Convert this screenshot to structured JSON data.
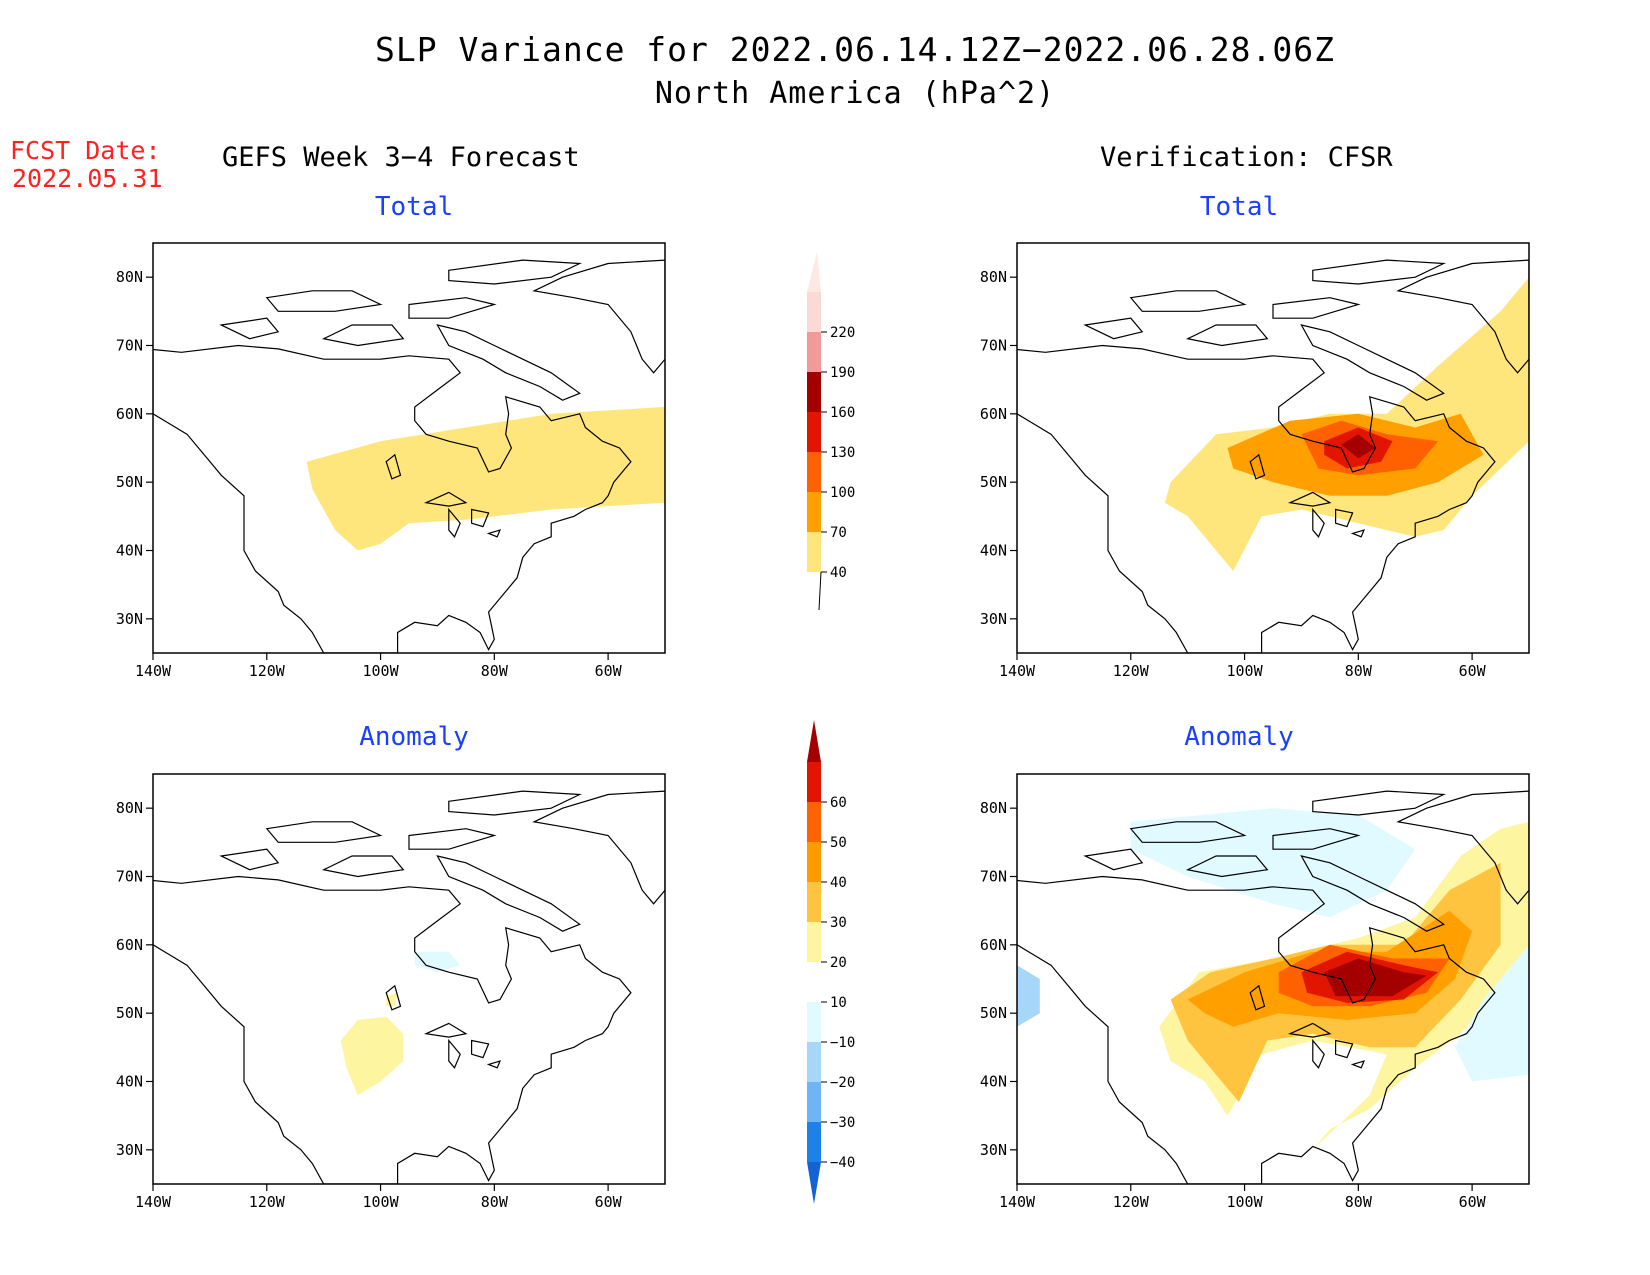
{
  "title": {
    "line1": "SLP Variance for 2022.06.14.12Z−2022.06.28.06Z",
    "line2": "North America (hPa^2)"
  },
  "fcst": {
    "label": "FCST Date:",
    "date": "2022.05.31"
  },
  "columns": {
    "left": "GEFS Week 3−4 Forecast",
    "right": "Verification: CFSR"
  },
  "panels": [
    {
      "id": "fcst-total",
      "title": "Total"
    },
    {
      "id": "verif-total",
      "title": "Total"
    },
    {
      "id": "fcst-anomaly",
      "title": "Anomaly"
    },
    {
      "id": "verif-anomaly",
      "title": "Anomaly"
    }
  ],
  "axes": {
    "lat_labels": [
      "30N",
      "40N",
      "50N",
      "60N",
      "70N",
      "80N"
    ],
    "lon_labels": [
      "140W",
      "120W",
      "100W",
      "80W",
      "60W"
    ],
    "lat_values": [
      30,
      40,
      50,
      60,
      70,
      80
    ],
    "lon_values": [
      -140,
      -120,
      -100,
      -80,
      -60
    ],
    "lat_range": [
      25,
      85
    ],
    "lon_range": [
      -140,
      -50
    ]
  },
  "colorbar_total": {
    "labels": [
      "40",
      "70",
      "100",
      "130",
      "160",
      "190",
      "220"
    ],
    "colors": [
      "#fee67d",
      "#ffa000",
      "#ff6000",
      "#e11500",
      "#a50000",
      "#f29999",
      "#fbd9d4"
    ]
  },
  "colorbar_anomaly": {
    "labels": [
      "−40",
      "−30",
      "−20",
      "−10",
      "10",
      "20",
      "30",
      "40",
      "50",
      "60"
    ],
    "colors": [
      "#1463d2",
      "#1e81e8",
      "#6fb4f5",
      "#a6d6f8",
      "#e1faff",
      "#ffffff",
      "#fdf5a0",
      "#ffc43f",
      "#ff9b00",
      "#ff6300",
      "#e11500",
      "#a50000"
    ]
  },
  "map_colors": {
    "coast": "#000000",
    "yellow": "#fee67d",
    "orange": "#ffa000",
    "orange2": "#ffc43f",
    "dark_orange": "#ff6000",
    "red": "#e11500",
    "dark_red": "#a50000",
    "light_yellow": "#fdf5a0",
    "light_blue": "#e1faff",
    "blue": "#a6d6f8",
    "mid_blue": "#6fb4f5"
  }
}
